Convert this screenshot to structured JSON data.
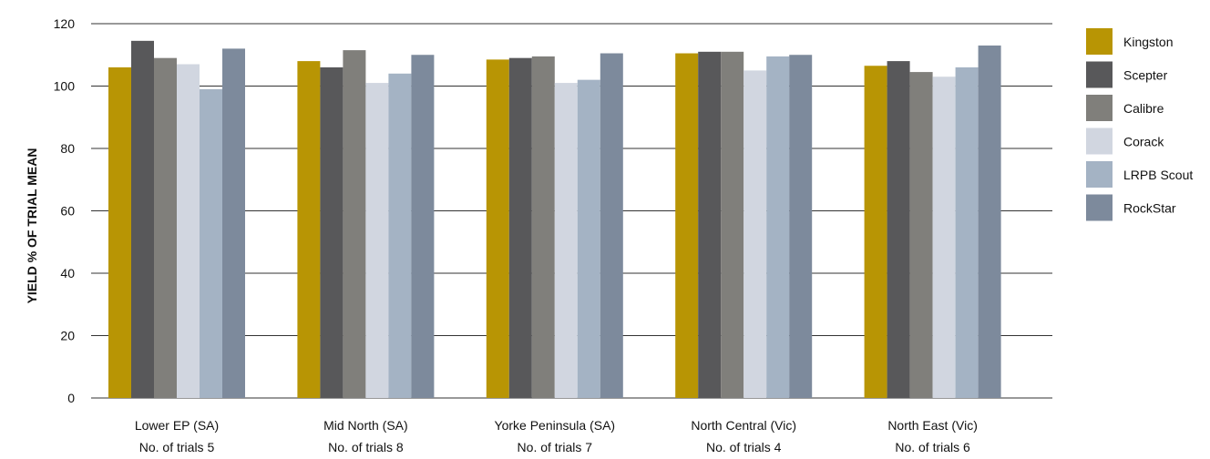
{
  "chart_data": {
    "type": "bar",
    "title": "",
    "xlabel": "",
    "ylabel": "YIELD % OF TRIAL MEAN",
    "ylim": [
      0,
      120
    ],
    "yticks": [
      0,
      20,
      40,
      60,
      80,
      100,
      120
    ],
    "grid": true,
    "legend": "right",
    "categories": [
      {
        "line1": "Lower EP (SA)",
        "line2": "No. of trials 5"
      },
      {
        "line1": "Mid North (SA)",
        "line2": "No. of trials 8"
      },
      {
        "line1": "Yorke Peninsula (SA)",
        "line2": "No. of trials 7"
      },
      {
        "line1": "North Central (Vic)",
        "line2": "No. of trials 4"
      },
      {
        "line1": "North East (Vic)",
        "line2": "No. of trials 6"
      }
    ],
    "series": [
      {
        "name": "Kingston",
        "color": "#b89504",
        "values": [
          106,
          108,
          108.5,
          110.5,
          106.5
        ]
      },
      {
        "name": "Scepter",
        "color": "#58585a",
        "values": [
          114.5,
          106,
          109,
          111,
          108
        ]
      },
      {
        "name": "Calibre",
        "color": "#807f7b",
        "values": [
          109,
          111.5,
          109.5,
          111,
          104.5
        ]
      },
      {
        "name": "Corack",
        "color": "#d1d6e0",
        "values": [
          107,
          101,
          101,
          105,
          103
        ]
      },
      {
        "name": "LRPB Scout",
        "color": "#a4b3c4",
        "values": [
          99,
          104,
          102,
          109.5,
          106
        ]
      },
      {
        "name": "RockStar",
        "color": "#7d8a9c",
        "values": [
          112,
          110,
          110.5,
          110,
          113
        ]
      }
    ]
  }
}
